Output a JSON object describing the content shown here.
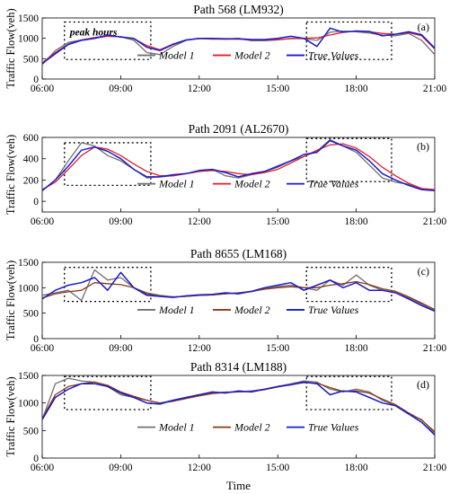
{
  "figure": {
    "xlabel": "Time",
    "annotation": "peak hours"
  },
  "chart_data": [
    {
      "type": "line",
      "title": "Path 568 (LM932)",
      "tag": "(a)",
      "ylabel": "Traffic Flow(veh)",
      "ylim": [
        0,
        1500
      ],
      "yticks": [
        "0",
        "500",
        "1000",
        "1500"
      ],
      "xlim": [
        6,
        21
      ],
      "xticks": [
        "06:00",
        "09:00",
        "12:00",
        "15:00",
        "18:00",
        "21:00"
      ],
      "legend_labels": [
        "Model 1",
        "Model 2",
        "True Values"
      ],
      "legend_colors": [
        "#707070",
        "#e0202a",
        "#1a1acc"
      ],
      "peak_boxes": [
        {
          "x": [
            6.85,
            10.15
          ],
          "y": [
            480,
            1400
          ]
        },
        {
          "x": [
            16.1,
            19.35
          ],
          "y": [
            480,
            1400
          ]
        }
      ],
      "series": [
        {
          "name": "Model 1",
          "color": "#707070",
          "x": [
            6,
            6.5,
            7,
            7.5,
            8,
            8.5,
            9,
            9.5,
            10,
            10.5,
            11,
            11.5,
            12,
            12.5,
            13,
            13.5,
            14,
            14.5,
            15,
            15.5,
            16,
            16.5,
            17,
            17.5,
            18,
            18.5,
            19,
            19.5,
            20,
            20.5,
            21
          ],
          "y": [
            350,
            700,
            900,
            960,
            1000,
            1050,
            1040,
            950,
            650,
            600,
            800,
            950,
            1000,
            980,
            980,
            1000,
            940,
            940,
            960,
            1000,
            990,
            950,
            1150,
            1180,
            1160,
            1130,
            1080,
            1060,
            1120,
            950,
            600
          ]
        },
        {
          "name": "Model 2",
          "color": "#e0202a",
          "x": [
            6,
            6.5,
            7,
            7.5,
            8,
            8.5,
            9,
            9.5,
            10,
            10.5,
            11,
            11.5,
            12,
            12.5,
            13,
            13.5,
            14,
            14.5,
            15,
            15.5,
            16,
            16.5,
            17,
            17.5,
            18,
            18.5,
            19,
            19.5,
            20,
            20.5,
            21
          ],
          "y": [
            400,
            650,
            860,
            960,
            1020,
            1050,
            1040,
            990,
            820,
            720,
            860,
            960,
            990,
            990,
            980,
            980,
            960,
            960,
            970,
            990,
            1000,
            1010,
            1080,
            1150,
            1180,
            1160,
            1120,
            1100,
            1140,
            1060,
            740
          ]
        },
        {
          "name": "True Values",
          "color": "#1a1acc",
          "x": [
            6,
            6.5,
            7,
            7.5,
            8,
            8.5,
            9,
            9.5,
            10,
            10.5,
            11,
            11.5,
            12,
            12.5,
            13,
            13.5,
            14,
            14.5,
            15,
            15.5,
            16,
            16.5,
            17,
            17.5,
            18,
            18.5,
            19,
            19.5,
            20,
            20.5,
            21
          ],
          "y": [
            380,
            620,
            850,
            950,
            1000,
            1080,
            1030,
            1000,
            780,
            700,
            850,
            960,
            1000,
            1000,
            990,
            990,
            970,
            970,
            1000,
            1050,
            1000,
            800,
            1250,
            1150,
            1180,
            1170,
            1060,
            1100,
            1160,
            1090,
            760
          ]
        }
      ]
    },
    {
      "type": "line",
      "title": "Path 2091 (AL2670)",
      "tag": "(b)",
      "ylabel": "Traffic Flow(veh)",
      "ylim": [
        -100,
        600
      ],
      "yticks": [
        "0",
        "200",
        "400",
        "600"
      ],
      "xlim": [
        6,
        21
      ],
      "xticks": [
        "06:00",
        "09:00",
        "12:00",
        "15:00",
        "18:00",
        "21:00"
      ],
      "legend_labels": [
        "Model 1",
        "Model 2",
        "True Values"
      ],
      "legend_colors": [
        "#707070",
        "#e0202a",
        "#1a1acc"
      ],
      "peak_boxes": [
        {
          "x": [
            6.85,
            10.15
          ],
          "y": [
            150,
            550
          ]
        },
        {
          "x": [
            16.1,
            19.35
          ],
          "y": [
            185,
            590
          ]
        }
      ],
      "series": [
        {
          "name": "Model 1",
          "color": "#707070",
          "x": [
            6,
            6.5,
            7,
            7.5,
            8,
            8.5,
            9,
            9.5,
            10,
            10.5,
            11,
            11.5,
            12,
            12.5,
            13,
            13.5,
            14,
            14.5,
            15,
            15.5,
            16,
            16.5,
            17,
            17.5,
            18,
            18.5,
            19,
            19.5,
            20,
            20.5,
            21
          ],
          "y": [
            100,
            200,
            380,
            550,
            520,
            430,
            380,
            300,
            220,
            230,
            240,
            260,
            280,
            300,
            240,
            220,
            250,
            280,
            320,
            380,
            420,
            470,
            580,
            520,
            460,
            340,
            220,
            180,
            160,
            120,
            110
          ]
        },
        {
          "name": "Model 2",
          "color": "#e0202a",
          "x": [
            6,
            6.5,
            7,
            7.5,
            8,
            8.5,
            9,
            9.5,
            10,
            10.5,
            11,
            11.5,
            12,
            12.5,
            13,
            13.5,
            14,
            14.5,
            15,
            15.5,
            16,
            16.5,
            17,
            17.5,
            18,
            18.5,
            19,
            19.5,
            20,
            20.5,
            21
          ],
          "y": [
            110,
            180,
            300,
            430,
            510,
            490,
            430,
            350,
            280,
            240,
            240,
            260,
            280,
            290,
            280,
            260,
            250,
            270,
            300,
            360,
            420,
            480,
            530,
            540,
            500,
            420,
            320,
            240,
            170,
            120,
            110
          ]
        },
        {
          "name": "True Values",
          "color": "#1a1acc",
          "x": [
            6,
            6.5,
            7,
            7.5,
            8,
            8.5,
            9,
            9.5,
            10,
            10.5,
            11,
            11.5,
            12,
            12.5,
            13,
            13.5,
            14,
            14.5,
            15,
            15.5,
            16,
            16.5,
            17,
            17.5,
            18,
            18.5,
            19,
            19.5,
            20,
            20.5,
            21
          ],
          "y": [
            100,
            200,
            330,
            480,
            510,
            470,
            400,
            300,
            230,
            230,
            250,
            260,
            290,
            300,
            270,
            230,
            260,
            280,
            330,
            380,
            440,
            460,
            570,
            520,
            480,
            380,
            260,
            200,
            150,
            110,
            100
          ]
        }
      ]
    },
    {
      "type": "line",
      "title": "Path 8655 (LM168)",
      "tag": "(c)",
      "ylabel": "Traffic Flow(veh)",
      "ylim": [
        0,
        1500
      ],
      "yticks": [
        "0",
        "500",
        "1000",
        "1500"
      ],
      "xlim": [
        6,
        21
      ],
      "xticks": [
        "06:00",
        "09:00",
        "12:00",
        "15:00",
        "18:00",
        "21:00"
      ],
      "legend_labels": [
        "Model 1",
        "Model 2",
        "True Values"
      ],
      "legend_colors": [
        "#707070",
        "#8a3a10",
        "#1a1acc"
      ],
      "peak_boxes": [
        {
          "x": [
            6.85,
            10.15
          ],
          "y": [
            730,
            1400
          ]
        },
        {
          "x": [
            16.1,
            19.35
          ],
          "y": [
            730,
            1400
          ]
        }
      ],
      "series": [
        {
          "name": "Model 1",
          "color": "#707070",
          "x": [
            6,
            6.5,
            7,
            7.5,
            8,
            8.5,
            9,
            9.5,
            10,
            10.5,
            11,
            11.5,
            12,
            12.5,
            13,
            13.5,
            14,
            14.5,
            15,
            15.5,
            16,
            16.5,
            17,
            17.5,
            18,
            18.5,
            19,
            19.5,
            20,
            20.5,
            21
          ],
          "y": [
            850,
            900,
            950,
            750,
            1350,
            1150,
            1200,
            1000,
            900,
            850,
            820,
            830,
            850,
            860,
            880,
            900,
            920,
            980,
            1020,
            1050,
            1000,
            950,
            1150,
            1050,
            1250,
            1050,
            950,
            900,
            800,
            680,
            560
          ]
        },
        {
          "name": "Model 2",
          "color": "#8a3a10",
          "x": [
            6,
            6.5,
            7,
            7.5,
            8,
            8.5,
            9,
            9.5,
            10,
            10.5,
            11,
            11.5,
            12,
            12.5,
            13,
            13.5,
            14,
            14.5,
            15,
            15.5,
            16,
            16.5,
            17,
            17.5,
            18,
            18.5,
            19,
            19.5,
            20,
            20.5,
            21
          ],
          "y": [
            800,
            880,
            920,
            950,
            1100,
            1080,
            1060,
            1000,
            880,
            830,
            820,
            830,
            850,
            860,
            880,
            900,
            930,
            970,
            1000,
            1020,
            1000,
            1000,
            1050,
            1080,
            1120,
            1060,
            980,
            930,
            820,
            700,
            570
          ]
        },
        {
          "name": "True Values",
          "color": "#1a1acc",
          "x": [
            6,
            6.5,
            7,
            7.5,
            8,
            8.5,
            9,
            9.5,
            10,
            10.5,
            11,
            11.5,
            12,
            12.5,
            13,
            13.5,
            14,
            14.5,
            15,
            15.5,
            16,
            16.5,
            17,
            17.5,
            18,
            18.5,
            19,
            19.5,
            20,
            20.5,
            21
          ],
          "y": [
            780,
            950,
            1050,
            1100,
            1200,
            950,
            1300,
            1000,
            850,
            830,
            810,
            840,
            860,
            870,
            900,
            880,
            930,
            1000,
            1050,
            1100,
            950,
            1050,
            1150,
            1000,
            1100,
            950,
            950,
            900,
            780,
            650,
            540
          ]
        }
      ]
    },
    {
      "type": "line",
      "title": "Path 8314 (LM188)",
      "tag": "(d)",
      "ylabel": "Traffic Flow(veh)",
      "ylim": [
        0,
        1500
      ],
      "yticks": [
        "0",
        "500",
        "1000",
        "1500"
      ],
      "xlim": [
        6,
        21
      ],
      "xticks": [
        "06:00",
        "09:00",
        "12:00",
        "15:00",
        "18:00",
        "21:00"
      ],
      "legend_labels": [
        "Model 1",
        "Model 2",
        "True Values"
      ],
      "legend_colors": [
        "#707070",
        "#8a3a10",
        "#1a1acc"
      ],
      "peak_boxes": [
        {
          "x": [
            6.85,
            10.15
          ],
          "y": [
            880,
            1480
          ]
        },
        {
          "x": [
            16.1,
            19.35
          ],
          "y": [
            880,
            1480
          ]
        }
      ],
      "series": [
        {
          "name": "Model 1",
          "color": "#707070",
          "x": [
            6,
            6.5,
            7,
            7.5,
            8,
            8.5,
            9,
            9.5,
            10,
            10.5,
            11,
            11.5,
            12,
            12.5,
            13,
            13.5,
            14,
            14.5,
            15,
            15.5,
            16,
            16.5,
            17,
            17.5,
            18,
            18.5,
            19,
            19.5,
            20,
            20.5,
            21
          ],
          "y": [
            700,
            1350,
            1450,
            1400,
            1380,
            1300,
            1150,
            1100,
            1050,
            1000,
            1050,
            1100,
            1150,
            1180,
            1200,
            1200,
            1220,
            1250,
            1300,
            1350,
            1400,
            1380,
            1250,
            1200,
            1250,
            1200,
            1050,
            950,
            800,
            700,
            450
          ]
        },
        {
          "name": "Model 2",
          "color": "#8a3a10",
          "x": [
            6,
            6.5,
            7,
            7.5,
            8,
            8.5,
            9,
            9.5,
            10,
            10.5,
            11,
            11.5,
            12,
            12.5,
            13,
            13.5,
            14,
            14.5,
            15,
            15.5,
            16,
            16.5,
            17,
            17.5,
            18,
            18.5,
            19,
            19.5,
            20,
            20.5,
            21
          ],
          "y": [
            720,
            1150,
            1300,
            1350,
            1380,
            1320,
            1200,
            1120,
            1050,
            1000,
            1030,
            1080,
            1130,
            1170,
            1190,
            1200,
            1210,
            1240,
            1290,
            1330,
            1370,
            1360,
            1280,
            1210,
            1220,
            1180,
            1070,
            970,
            820,
            690,
            480
          ]
        },
        {
          "name": "True Values",
          "color": "#1a1acc",
          "x": [
            6,
            6.5,
            7,
            7.5,
            8,
            8.5,
            9,
            9.5,
            10,
            10.5,
            11,
            11.5,
            12,
            12.5,
            13,
            13.5,
            14,
            14.5,
            15,
            15.5,
            16,
            16.5,
            17,
            17.5,
            18,
            18.5,
            19,
            19.5,
            20,
            20.5,
            21
          ],
          "y": [
            700,
            1100,
            1250,
            1350,
            1350,
            1300,
            1180,
            1100,
            1000,
            980,
            1050,
            1100,
            1150,
            1200,
            1180,
            1220,
            1200,
            1250,
            1300,
            1330,
            1380,
            1350,
            1150,
            1220,
            1200,
            1100,
            1000,
            950,
            800,
            650,
            420
          ]
        }
      ]
    }
  ]
}
